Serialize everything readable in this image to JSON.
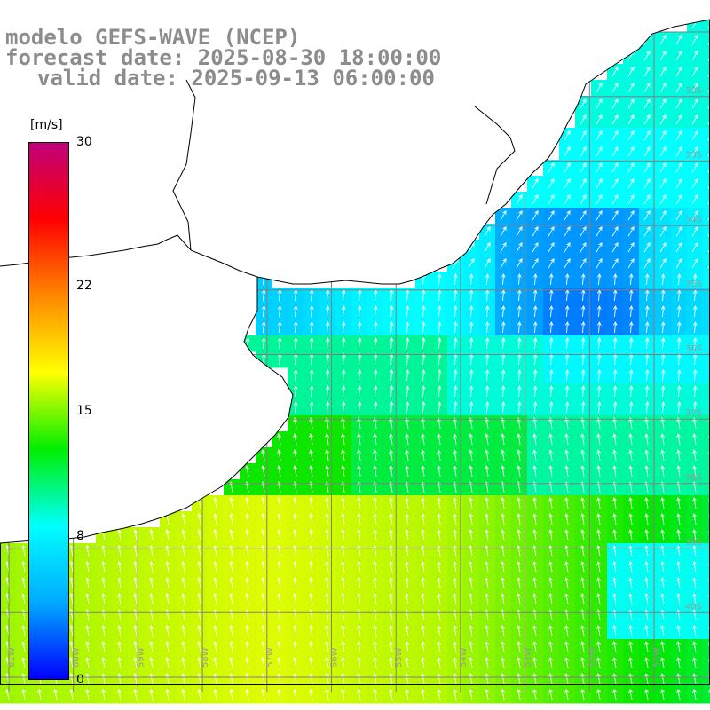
{
  "title": {
    "line1": "modelo GEFS-WAVE (NCEP)",
    "line2": "forecast date: 2025-08-30 18:00:00",
    "line3": "valid date: 2025-09-13 06:00:00"
  },
  "colorbar": {
    "unit": "[m/s]",
    "ticks": [
      {
        "value": 30,
        "label": "30"
      },
      {
        "value": 22,
        "label": "22"
      },
      {
        "value": 15,
        "label": "15"
      },
      {
        "value": 8,
        "label": "8"
      },
      {
        "value": 0,
        "label": "0"
      }
    ],
    "range": [
      0,
      30
    ],
    "colors": [
      "#0000ff",
      "#00aaff",
      "#00ffff",
      "#00ee00",
      "#ffff00",
      "#ff8800",
      "#ff0000",
      "#c0007a"
    ]
  },
  "map": {
    "field": "wind speed",
    "lon_range": [
      -62,
      -51
    ],
    "lat_range": [
      -42,
      -31
    ],
    "lon_labels": [
      "61W",
      "60W",
      "59W",
      "58W",
      "57W",
      "56W",
      "55W",
      "54W",
      "53W",
      "52W",
      "51W"
    ],
    "lat_labels": [
      "32S",
      "33S",
      "34S",
      "35S",
      "36S",
      "37S",
      "38S",
      "39S",
      "40S"
    ],
    "land_color": "#ffffff",
    "grid_color": "#808080",
    "coast_color": "#000000",
    "arrow_color": "#ffffff"
  }
}
